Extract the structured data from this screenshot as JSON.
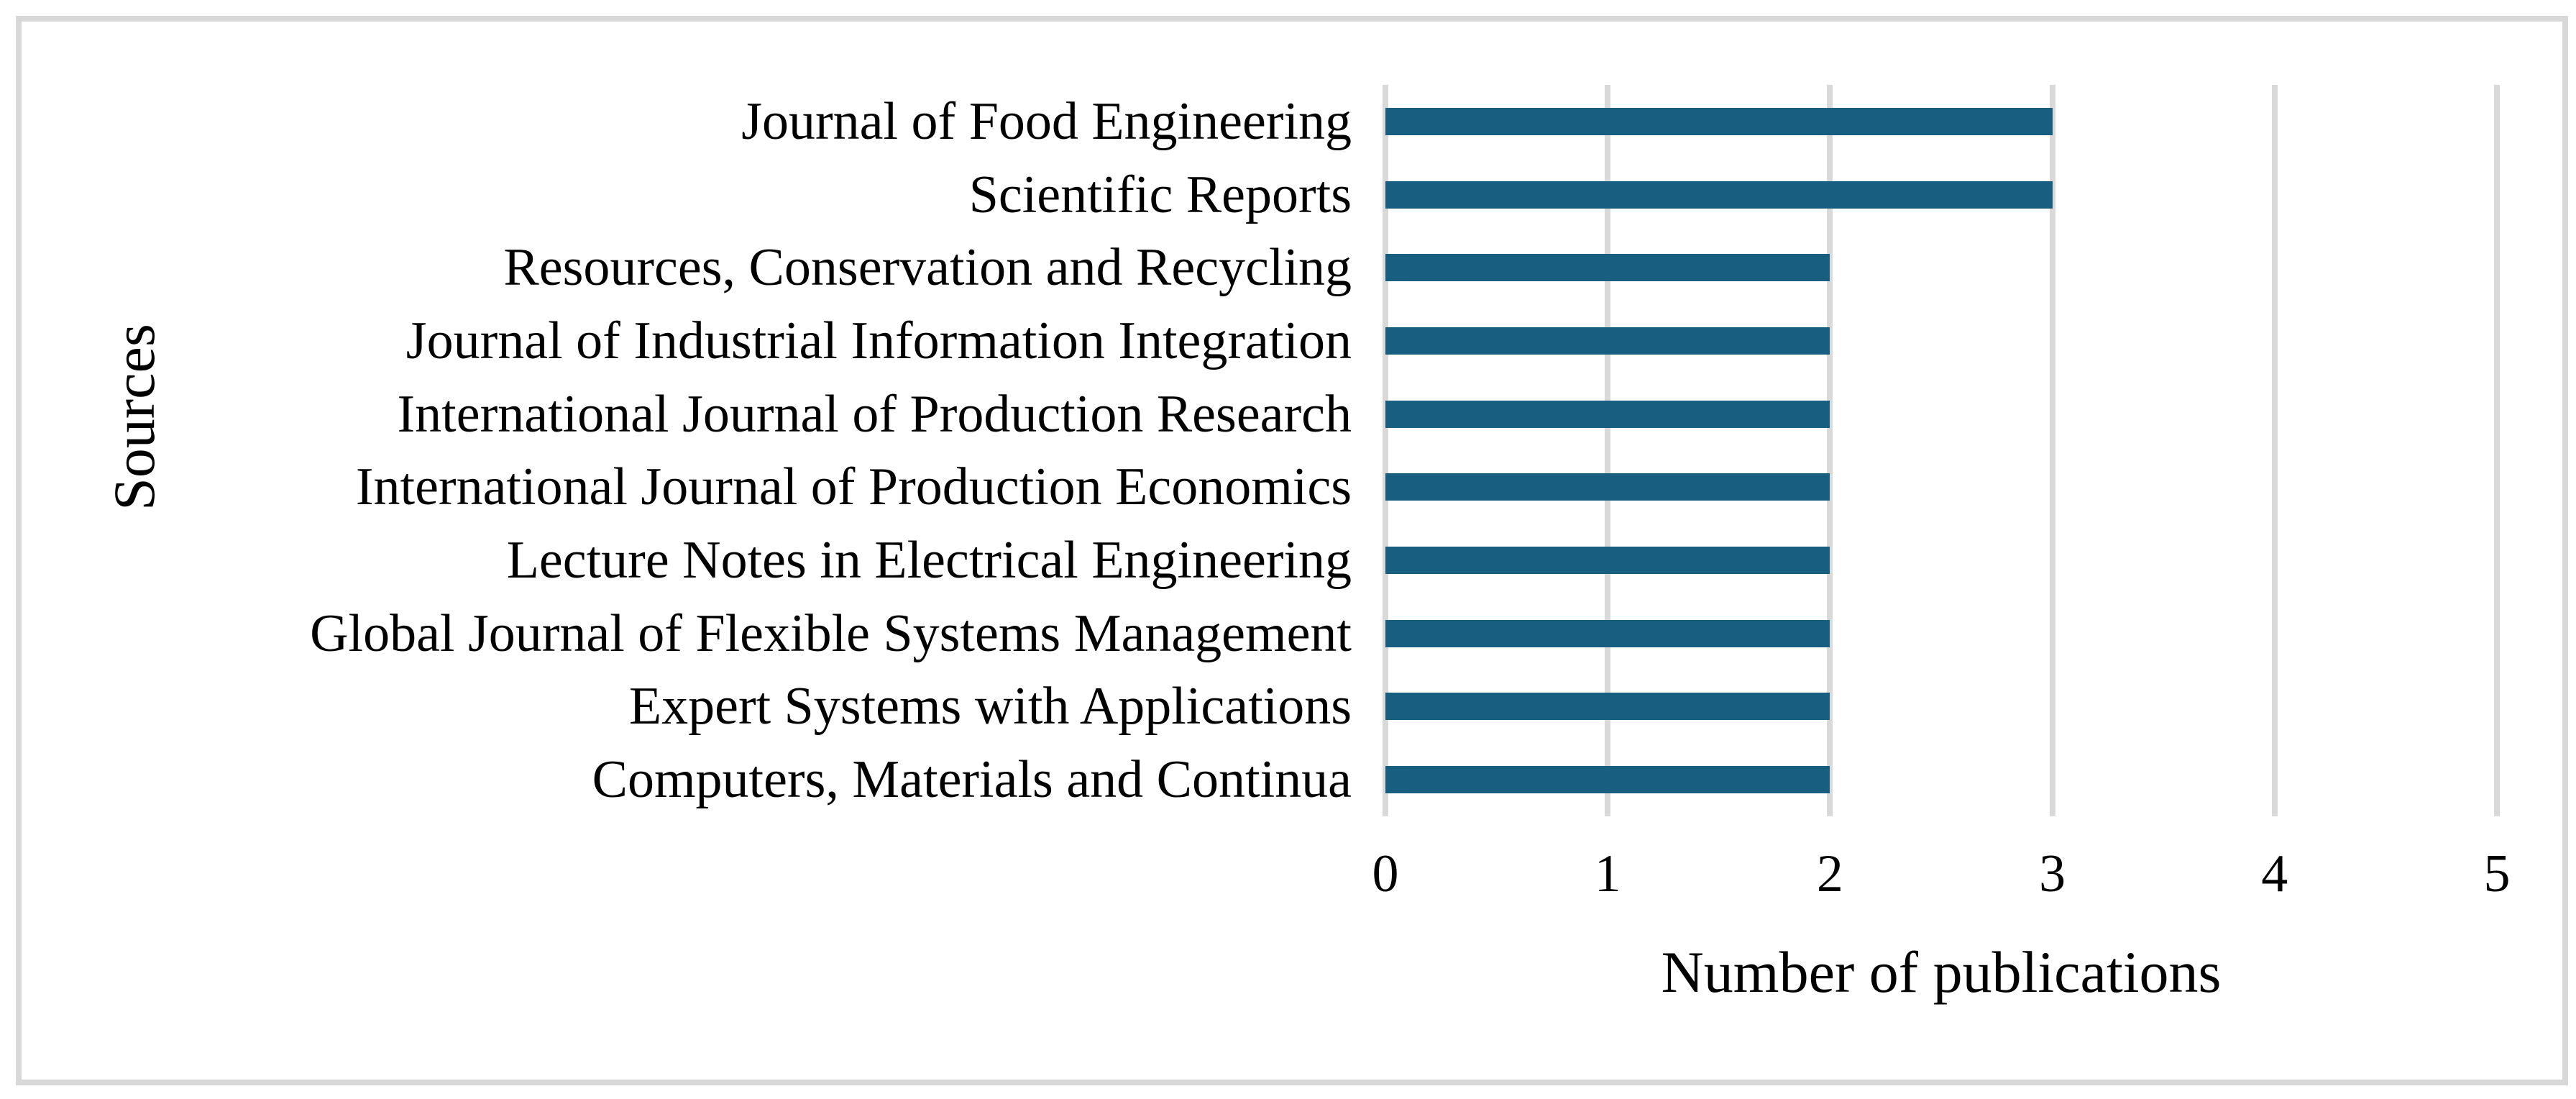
{
  "figure": {
    "background": "#ffffff",
    "frame_border_color": "#d8d8d8"
  },
  "chart_data": {
    "type": "bar",
    "orientation": "horizontal",
    "title": "",
    "xlabel": "Number of publications",
    "ylabel": "Sources",
    "categories": [
      "Journal of Food Engineering",
      "Scientific Reports",
      "Resources, Conservation and Recycling",
      "Journal of Industrial Information Integration",
      "International Journal of Production Research",
      "International Journal of Production Economics",
      "Lecture Notes in Electrical Engineering",
      "Global Journal of Flexible Systems Management",
      "Expert Systems with Applications",
      "Computers, Materials and Continua"
    ],
    "values": [
      3,
      3,
      2,
      2,
      2,
      2,
      2,
      2,
      2,
      2
    ],
    "xlim": [
      0,
      5
    ],
    "xticks": [
      0,
      1,
      2,
      3,
      4,
      5
    ],
    "grid": true,
    "gridline_color": "#d9d9d9",
    "bar_color": "#175e80",
    "text_color": "#000000",
    "legend": "none"
  }
}
